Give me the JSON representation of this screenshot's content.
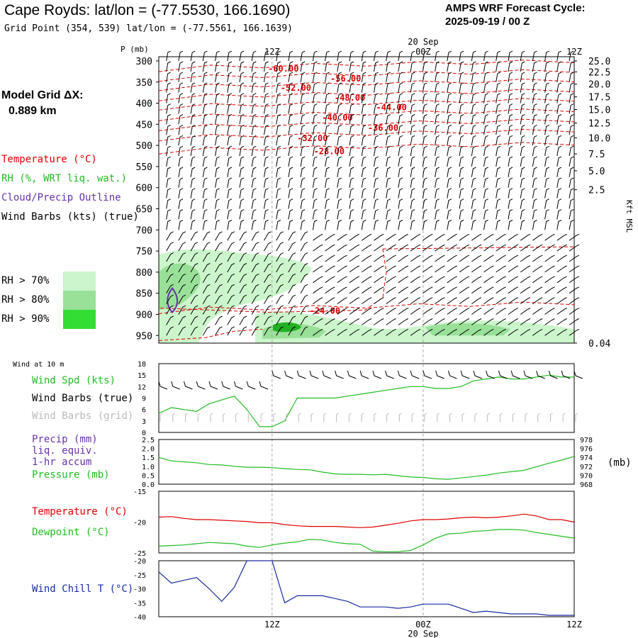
{
  "header": {
    "title": "Cape Royds:  lat/lon = (-77.5530, 166.1690)",
    "grid_point": "Grid Point (354, 539) lat/lon = (-77.5561, 166.1639)",
    "cycle_label": "AMPS WRF Forecast Cycle:",
    "cycle_value": "2025-09-19 / 00  Z"
  },
  "sidebar": {
    "model_grid_label": "Model Grid ΔX:",
    "model_grid_value": "0.889 km",
    "temperature_legend": "Temperature (°C)",
    "rh_legend": "RH (%, WRT liq. wat.)",
    "cloud_legend": "Cloud/Precip Outline",
    "wind_legend": "Wind Barbs (kts) (true)",
    "rh_levels": [
      "RH > 70%",
      "RH > 80%",
      "RH > 90%"
    ]
  },
  "colors": {
    "temperature": "#dd0000",
    "rh": "#22bb22",
    "cloud": "#6633aa",
    "wind_grid": "#bbbbbb",
    "wind_chill": "#1a2aa0",
    "rh70": "#ccf5cc",
    "rh80": "#99e099",
    "rh90": "#33dd33"
  },
  "time_axis": {
    "top_labels": [
      "12Z",
      "00Z",
      "12Z"
    ],
    "date_label": "20 Sep",
    "bottom_labels": [
      "12Z",
      "00Z",
      "12Z"
    ]
  },
  "chart_data": [
    {
      "type": "heatmap",
      "name": "cross-section",
      "ylabel": "P (mb)",
      "y_ticks": [
        "300",
        "350",
        "400",
        "450",
        "500",
        "550",
        "600",
        "650",
        "700",
        "750",
        "800",
        "850",
        "900",
        "950"
      ],
      "ylim_mb": [
        290,
        968
      ],
      "right_label": "Kft MSL",
      "right_ticks": [
        "25.0",
        "22.5",
        "20.0",
        "17.5",
        "15.0",
        "12.5",
        "10.0",
        "7.5",
        "5.0",
        "2.5",
        "0.04"
      ],
      "right_tick_mb": [
        300,
        326,
        355,
        385,
        415,
        447,
        482,
        520,
        560,
        605,
        968
      ],
      "temperature_contours": [
        "-60.00",
        "-56.00",
        "-52.00",
        "-48.00",
        "-44.00",
        "-40.00",
        "-36.00",
        "-32.00",
        "-28.00",
        "-24.00"
      ],
      "temperature_label_pos": [
        [
          0.3,
          317
        ],
        [
          0.45,
          340
        ],
        [
          0.33,
          362
        ],
        [
          0.46,
          386
        ],
        [
          0.56,
          408
        ],
        [
          0.43,
          433
        ],
        [
          0.54,
          457
        ],
        [
          0.37,
          481
        ],
        [
          0.41,
          512
        ],
        [
          0.4,
          890
        ]
      ],
      "x_range_h": [
        3,
        36
      ]
    },
    {
      "type": "line",
      "name": "wind-10m",
      "label_top": "Wind at 10 m",
      "series_labels": [
        "Wind Spd (kts)",
        "Wind Barbs (true)",
        "Wind Barbs (grid)"
      ],
      "y_ticks": [
        "0",
        "3",
        "6",
        "9",
        "12",
        "15",
        "18"
      ],
      "ylim": [
        0,
        18
      ],
      "x": [
        3,
        4,
        5,
        6,
        7,
        8,
        9,
        10,
        11,
        12,
        13,
        14,
        15,
        16,
        17,
        18,
        19,
        20,
        21,
        22,
        23,
        24,
        25,
        26,
        27,
        28,
        29,
        30,
        31,
        32,
        33,
        34,
        35,
        36
      ],
      "values": [
        5,
        6.5,
        6,
        5.5,
        7.5,
        8.5,
        9.5,
        6,
        1.5,
        1.5,
        3,
        9,
        9,
        9,
        9,
        9.5,
        10,
        10.5,
        11,
        11.5,
        12,
        12,
        11.5,
        11.5,
        12,
        13.5,
        14,
        14.5,
        14,
        14,
        14.5,
        15,
        14.5,
        14.5
      ]
    },
    {
      "type": "line",
      "name": "pressure",
      "series_labels": [
        "Precip (mm)",
        "liq. equiv.",
        "1-hr accum",
        "Pressure (mb)"
      ],
      "y_ticks_left": [
        "0.0",
        "0.5",
        "1.0",
        "1.5",
        "2.0",
        "2.5"
      ],
      "y_ticks_right": [
        "968",
        "970",
        "972",
        "974",
        "976",
        "978"
      ],
      "right_unit": "(mb)",
      "ylim": [
        968,
        978
      ],
      "x": [
        3,
        4,
        5,
        6,
        7,
        8,
        9,
        10,
        11,
        12,
        13,
        14,
        15,
        16,
        17,
        18,
        19,
        20,
        21,
        22,
        23,
        24,
        25,
        26,
        27,
        28,
        29,
        30,
        31,
        32,
        33,
        34,
        35,
        36
      ],
      "values": [
        974,
        973.2,
        973,
        972.8,
        972.4,
        972.3,
        972,
        971.8,
        971.8,
        971.7,
        971.5,
        971.3,
        971.2,
        970.7,
        970.3,
        970.2,
        970.2,
        970.1,
        970.2,
        969.9,
        969.6,
        969.5,
        969.2,
        969.1,
        969.4,
        969.7,
        970,
        970.5,
        970.8,
        971.1,
        971.9,
        972.7,
        973.4,
        974.2
      ]
    },
    {
      "type": "line",
      "name": "temp-dewpoint",
      "series": [
        {
          "name": "Temperature (°C)",
          "values": [
            -19.2,
            -19.1,
            -19.4,
            -19.6,
            -19.6,
            -19.7,
            -19.8,
            -19.9,
            -20.1,
            -20.1,
            -20.4,
            -20.6,
            -20.7,
            -20.7,
            -20.7,
            -20.8,
            -20.9,
            -20.8,
            -20.5,
            -20.2,
            -19.8,
            -19.6,
            -19.6,
            -19.5,
            -19.3,
            -19.2,
            -19.3,
            -19.2,
            -19.0,
            -18.7,
            -19.0,
            -19.6,
            -19.6,
            -20.0
          ]
        },
        {
          "name": "Dewpoint (°C)",
          "values": [
            -23.9,
            -23.8,
            -23.7,
            -23.5,
            -23.3,
            -23.4,
            -23.5,
            -23.9,
            -24.1,
            -23.7,
            -23.4,
            -23.2,
            -22.8,
            -22.9,
            -23.3,
            -23.5,
            -23.6,
            -24.7,
            -24.8,
            -24.8,
            -24.6,
            -23.7,
            -22.6,
            -21.9,
            -21.8,
            -21.5,
            -21.4,
            -21.2,
            -21.2,
            -21.3,
            -21.7,
            -22.0,
            -22.3,
            -22.6
          ]
        }
      ],
      "x": [
        3,
        4,
        5,
        6,
        7,
        8,
        9,
        10,
        11,
        12,
        13,
        14,
        15,
        16,
        17,
        18,
        19,
        20,
        21,
        22,
        23,
        24,
        25,
        26,
        27,
        28,
        29,
        30,
        31,
        32,
        33,
        34,
        35,
        36
      ],
      "y_ticks": [
        "-15",
        "-20",
        "-25"
      ],
      "ylim": [
        -25,
        -15
      ]
    },
    {
      "type": "line",
      "name": "wind-chill",
      "series_labels": [
        "Wind Chill T (°C)"
      ],
      "y_ticks": [
        "-20",
        "-25",
        "-30",
        "-35",
        "-40"
      ],
      "ylim": [
        -40,
        -20
      ],
      "x": [
        3,
        4,
        5,
        6,
        7,
        8,
        9,
        10,
        11,
        12,
        13,
        14,
        15,
        16,
        17,
        18,
        19,
        20,
        21,
        22,
        23,
        24,
        25,
        26,
        27,
        28,
        29,
        30,
        31,
        32,
        33,
        34,
        35,
        36
      ],
      "values": [
        -24,
        -28,
        -27,
        -26,
        -30,
        -34.5,
        -29.5,
        -20,
        -20,
        -20,
        -35,
        -32.5,
        -32.5,
        -32.5,
        -33.5,
        -34.5,
        -36.5,
        -36.5,
        -36.5,
        -37,
        -36.5,
        -35.5,
        -35.5,
        -35.5,
        -37,
        -38.5,
        -38,
        -38.5,
        -39,
        -39,
        -39,
        -39.5,
        -39.5,
        -39.5
      ]
    }
  ]
}
